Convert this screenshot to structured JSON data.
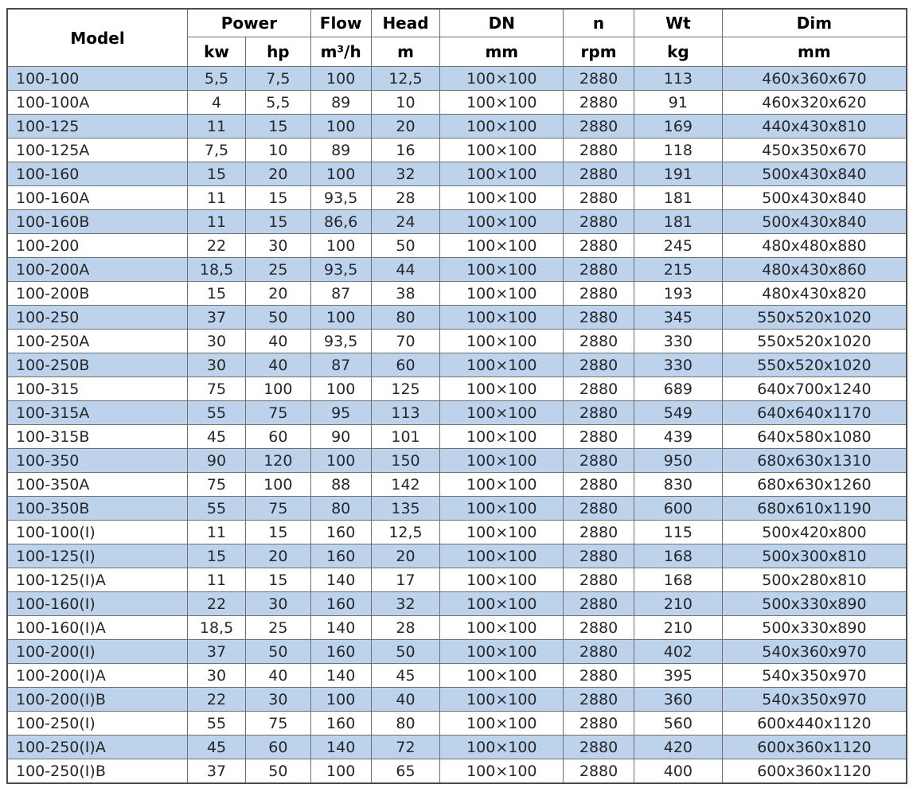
{
  "table": {
    "headers": {
      "model": "Model",
      "power": "Power",
      "kw": "kw",
      "hp": "hp",
      "flow": "Flow",
      "flow_unit": "m³/h",
      "head": "Head",
      "head_unit": "m",
      "dn": "DN",
      "dn_unit": "mm",
      "n": "n",
      "n_unit": "rpm",
      "wt": "Wt",
      "wt_unit": "kg",
      "dim": "Dim",
      "dim_unit": "mm"
    },
    "column_keys": [
      "model",
      "kw",
      "hp",
      "flow",
      "head",
      "dn",
      "rpm",
      "wt",
      "dim"
    ],
    "rows": [
      [
        "100-100",
        "5,5",
        "7,5",
        "100",
        "12,5",
        "100×100",
        "2880",
        "113",
        "460x360x670"
      ],
      [
        "100-100A",
        "4",
        "5,5",
        "89",
        "10",
        "100×100",
        "2880",
        "91",
        "460x320x620"
      ],
      [
        "100-125",
        "11",
        "15",
        "100",
        "20",
        "100×100",
        "2880",
        "169",
        "440x430x810"
      ],
      [
        "100-125A",
        "7,5",
        "10",
        "89",
        "16",
        "100×100",
        "2880",
        "118",
        "450x350x670"
      ],
      [
        "100-160",
        "15",
        "20",
        "100",
        "32",
        "100×100",
        "2880",
        "191",
        "500x430x840"
      ],
      [
        "100-160A",
        "11",
        "15",
        "93,5",
        "28",
        "100×100",
        "2880",
        "181",
        "500x430x840"
      ],
      [
        "100-160B",
        "11",
        "15",
        "86,6",
        "24",
        "100×100",
        "2880",
        "181",
        "500x430x840"
      ],
      [
        "100-200",
        "22",
        "30",
        "100",
        "50",
        "100×100",
        "2880",
        "245",
        "480x480x880"
      ],
      [
        "100-200A",
        "18,5",
        "25",
        "93,5",
        "44",
        "100×100",
        "2880",
        "215",
        "480x430x860"
      ],
      [
        "100-200B",
        "15",
        "20",
        "87",
        "38",
        "100×100",
        "2880",
        "193",
        "480x430x820"
      ],
      [
        "100-250",
        "37",
        "50",
        "100",
        "80",
        "100×100",
        "2880",
        "345",
        "550x520x1020"
      ],
      [
        "100-250A",
        "30",
        "40",
        "93,5",
        "70",
        "100×100",
        "2880",
        "330",
        "550x520x1020"
      ],
      [
        "100-250B",
        "30",
        "40",
        "87",
        "60",
        "100×100",
        "2880",
        "330",
        "550x520x1020"
      ],
      [
        "100-315",
        "75",
        "100",
        "100",
        "125",
        "100×100",
        "2880",
        "689",
        "640x700x1240"
      ],
      [
        "100-315A",
        "55",
        "75",
        "95",
        "113",
        "100×100",
        "2880",
        "549",
        "640x640x1170"
      ],
      [
        "100-315B",
        "45",
        "60",
        "90",
        "101",
        "100×100",
        "2880",
        "439",
        "640x580x1080"
      ],
      [
        "100-350",
        "90",
        "120",
        "100",
        "150",
        "100×100",
        "2880",
        "950",
        "680x630x1310"
      ],
      [
        "100-350A",
        "75",
        "100",
        "88",
        "142",
        "100×100",
        "2880",
        "830",
        "680x630x1260"
      ],
      [
        "100-350B",
        "55",
        "75",
        "80",
        "135",
        "100×100",
        "2880",
        "600",
        "680x610x1190"
      ],
      [
        "100-100(I)",
        "11",
        "15",
        "160",
        "12,5",
        "100×100",
        "2880",
        "115",
        "500x420x800"
      ],
      [
        "100-125(I)",
        "15",
        "20",
        "160",
        "20",
        "100×100",
        "2880",
        "168",
        "500x300x810"
      ],
      [
        "100-125(I)A",
        "11",
        "15",
        "140",
        "17",
        "100×100",
        "2880",
        "168",
        "500x280x810"
      ],
      [
        "100-160(I)",
        "22",
        "30",
        "160",
        "32",
        "100×100",
        "2880",
        "210",
        "500x330x890"
      ],
      [
        "100-160(I)A",
        "18,5",
        "25",
        "140",
        "28",
        "100×100",
        "2880",
        "210",
        "500x330x890"
      ],
      [
        "100-200(I)",
        "37",
        "50",
        "160",
        "50",
        "100×100",
        "2880",
        "402",
        "540x360x970"
      ],
      [
        "100-200(I)A",
        "30",
        "40",
        "140",
        "45",
        "100×100",
        "2880",
        "395",
        "540x350x970"
      ],
      [
        "100-200(I)B",
        "22",
        "30",
        "100",
        "40",
        "100×100",
        "2880",
        "360",
        "540x350x970"
      ],
      [
        "100-250(I)",
        "55",
        "75",
        "160",
        "80",
        "100×100",
        "2880",
        "560",
        "600x440x1120"
      ],
      [
        "100-250(I)A",
        "45",
        "60",
        "140",
        "72",
        "100×100",
        "2880",
        "420",
        "600x360x1120"
      ],
      [
        "100-250(I)B",
        "37",
        "50",
        "100",
        "65",
        "100×100",
        "2880",
        "400",
        "600x360x1120"
      ]
    ]
  },
  "colors": {
    "stripe_blue": "#bdd3eb",
    "border_inner": "#6f6f6f",
    "border_outer": "#4c4c4c",
    "header_text": "#000000",
    "data_text": "#24272c"
  }
}
